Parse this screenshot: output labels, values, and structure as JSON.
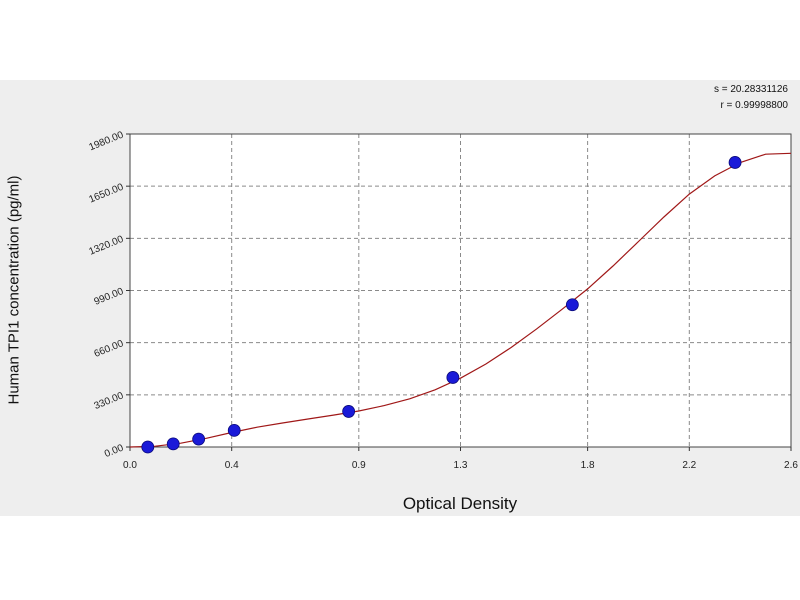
{
  "chart_data": {
    "type": "scatter",
    "xlabel": "Optical Density",
    "ylabel": "Human TPI1 concentration (pg/ml)",
    "xlim": [
      0,
      2.6
    ],
    "ylim": [
      0,
      1980
    ],
    "x_ticks": [
      0.0,
      0.4,
      0.9,
      1.3,
      1.8,
      2.2,
      2.6
    ],
    "x_tick_labels": [
      "0.0",
      "0.4",
      "0.9",
      "1.3",
      "1.8",
      "2.2",
      "2.6"
    ],
    "y_ticks": [
      0,
      330,
      660,
      990,
      1320,
      1650,
      1980
    ],
    "y_tick_labels": [
      "0.00",
      "330.00",
      "660.00",
      "990.00",
      "1320.00",
      "1650.00",
      "1980.00"
    ],
    "grid": true,
    "series": [
      {
        "type": "scatter",
        "color": "#1a1ad8",
        "points": [
          {
            "x": 0.07,
            "y": 0
          },
          {
            "x": 0.17,
            "y": 20
          },
          {
            "x": 0.27,
            "y": 50
          },
          {
            "x": 0.41,
            "y": 105
          },
          {
            "x": 0.86,
            "y": 225
          },
          {
            "x": 1.27,
            "y": 440
          },
          {
            "x": 1.74,
            "y": 900
          },
          {
            "x": 2.38,
            "y": 1800
          }
        ]
      },
      {
        "type": "line",
        "color": "#a01818",
        "points": [
          {
            "x": 0.0,
            "y": 0
          },
          {
            "x": 0.1,
            "y": 5
          },
          {
            "x": 0.2,
            "y": 24
          },
          {
            "x": 0.3,
            "y": 55
          },
          {
            "x": 0.4,
            "y": 92
          },
          {
            "x": 0.5,
            "y": 125
          },
          {
            "x": 0.6,
            "y": 152
          },
          {
            "x": 0.7,
            "y": 177
          },
          {
            "x": 0.8,
            "y": 202
          },
          {
            "x": 0.9,
            "y": 228
          },
          {
            "x": 1.0,
            "y": 262
          },
          {
            "x": 1.1,
            "y": 305
          },
          {
            "x": 1.2,
            "y": 362
          },
          {
            "x": 1.3,
            "y": 435
          },
          {
            "x": 1.4,
            "y": 525
          },
          {
            "x": 1.5,
            "y": 630
          },
          {
            "x": 1.6,
            "y": 748
          },
          {
            "x": 1.7,
            "y": 872
          },
          {
            "x": 1.8,
            "y": 1000
          },
          {
            "x": 1.9,
            "y": 1145
          },
          {
            "x": 2.0,
            "y": 1300
          },
          {
            "x": 2.1,
            "y": 1455
          },
          {
            "x": 2.2,
            "y": 1600
          },
          {
            "x": 2.3,
            "y": 1715
          },
          {
            "x": 2.4,
            "y": 1800
          },
          {
            "x": 2.5,
            "y": 1852
          },
          {
            "x": 2.6,
            "y": 1858
          }
        ]
      }
    ]
  },
  "stats": {
    "s": "s = 20.28331126",
    "r": "r = 0.99998800"
  }
}
